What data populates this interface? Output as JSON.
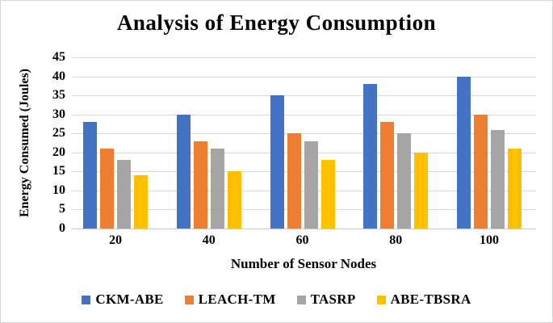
{
  "figure": {
    "background": "#ffffff",
    "border_color": "#d6d6d6"
  },
  "chart_data": {
    "type": "bar",
    "title": "Analysis of Energy Consumption",
    "xlabel": "Number of Sensor Nodes",
    "ylabel": "Energy Consumed (Joules)",
    "categories": [
      "20",
      "40",
      "60",
      "80",
      "100"
    ],
    "series": [
      {
        "name": "CKM-ABE",
        "color": "#4472C4",
        "values": [
          28,
          30,
          35,
          38,
          40
        ]
      },
      {
        "name": "LEACH-TM",
        "color": "#ED7D31",
        "values": [
          21,
          23,
          25,
          28,
          30
        ]
      },
      {
        "name": "TASRP",
        "color": "#A5A5A5",
        "values": [
          18,
          21,
          23,
          25,
          26
        ]
      },
      {
        "name": "ABE-TBSRA",
        "color": "#FFC000",
        "values": [
          14,
          15,
          18,
          20,
          21
        ]
      }
    ],
    "ylim": [
      0,
      45
    ],
    "ytick_step": 5,
    "grid": true,
    "gridline_color": "#D9D9D9",
    "legend_position": "bottom"
  }
}
